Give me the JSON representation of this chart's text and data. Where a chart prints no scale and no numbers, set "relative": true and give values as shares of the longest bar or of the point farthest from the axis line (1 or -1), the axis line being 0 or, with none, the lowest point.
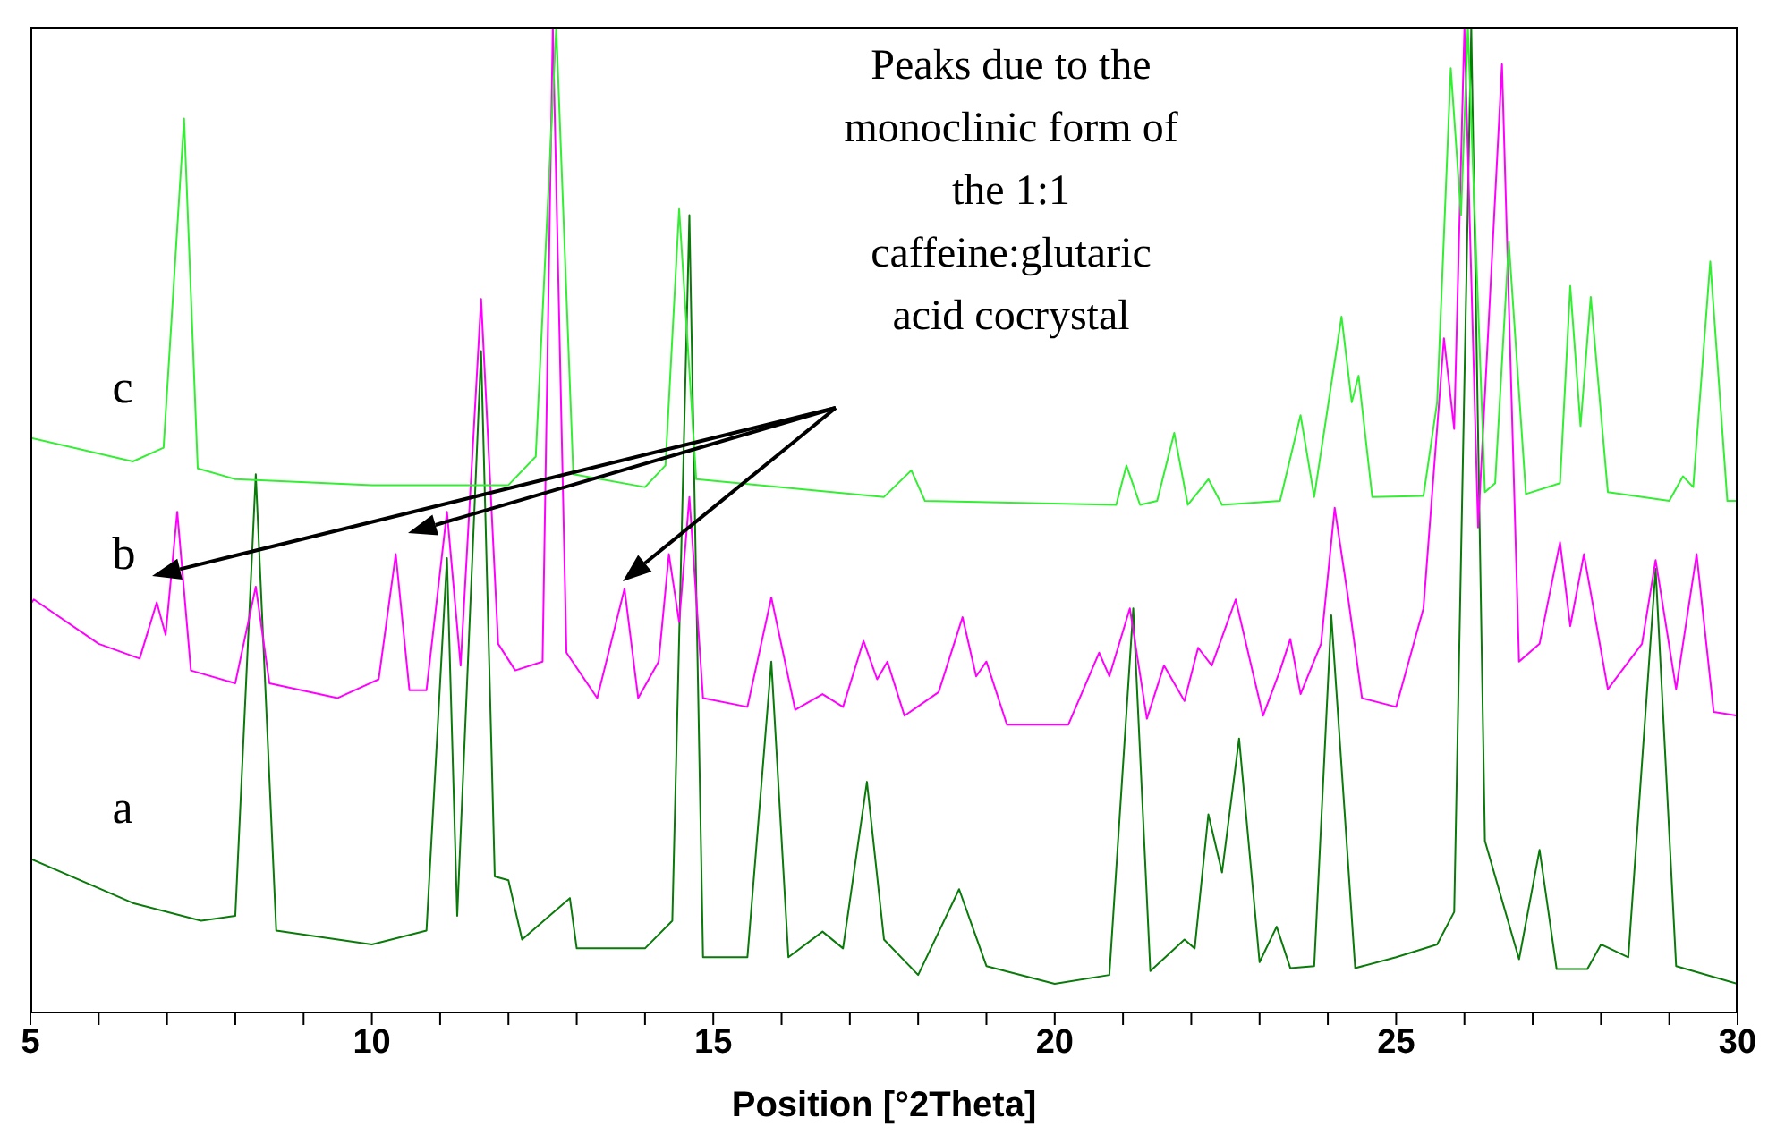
{
  "chart_data": {
    "type": "line",
    "relative": true,
    "xlabel": "Position [°2Theta]",
    "xlim": [
      5,
      30
    ],
    "xticks": [
      5,
      {
        "value": 6,
        "label": null
      },
      {
        "value": 7,
        "label": null
      },
      {
        "value": 8,
        "label": null
      },
      {
        "value": 9,
        "label": null
      },
      10,
      {
        "value": 11,
        "label": null
      },
      {
        "value": 12,
        "label": null
      },
      {
        "value": 13,
        "label": null
      },
      {
        "value": 14,
        "label": null
      },
      15,
      {
        "value": 16,
        "label": null
      },
      {
        "value": 17,
        "label": null
      },
      {
        "value": 18,
        "label": null
      },
      {
        "value": 19,
        "label": null
      },
      20,
      {
        "value": 21,
        "label": null
      },
      {
        "value": 22,
        "label": null
      },
      {
        "value": 23,
        "label": null
      },
      {
        "value": 24,
        "label": null
      },
      25,
      {
        "value": 26,
        "label": null
      },
      {
        "value": 27,
        "label": null
      },
      {
        "value": 28,
        "label": null
      },
      {
        "value": 29,
        "label": null
      },
      30
    ],
    "annotations": [
      "Peaks due to the monoclinic form of the 1:1 caffeine:glutaric acid cocrystal"
    ],
    "series": [
      {
        "name": "a",
        "color": "#0a7a0a",
        "x": [
          5,
          6.5,
          7.5,
          8.0,
          8.3,
          8.6,
          10,
          10.8,
          11.1,
          11.25,
          11.6,
          11.8,
          12.0,
          12.2,
          12.9,
          13.0,
          14.0,
          14.4,
          14.65,
          14.85,
          15.5,
          15.85,
          16.1,
          16.6,
          16.9,
          17.25,
          17.5,
          18.0,
          18.6,
          19.0,
          20.0,
          20.8,
          21.15,
          21.4,
          21.9,
          22.05,
          22.25,
          22.45,
          22.7,
          23.0,
          23.25,
          23.45,
          23.8,
          24.05,
          24.4,
          25.0,
          25.6,
          25.85,
          26.1,
          26.3,
          26.8,
          27.1,
          27.35,
          27.8,
          28.0,
          28.4,
          28.8,
          29.1,
          30
        ],
        "values": [
          0.156,
          0.111,
          0.093,
          0.098,
          0.546,
          0.083,
          0.069,
          0.083,
          0.461,
          0.098,
          0.671,
          0.138,
          0.134,
          0.074,
          0.116,
          0.065,
          0.065,
          0.093,
          0.809,
          0.056,
          0.056,
          0.356,
          0.056,
          0.082,
          0.065,
          0.234,
          0.074,
          0.038,
          0.125,
          0.047,
          0.029,
          0.038,
          0.41,
          0.042,
          0.074,
          0.065,
          0.201,
          0.142,
          0.278,
          0.051,
          0.087,
          0.045,
          0.047,
          0.403,
          0.045,
          0.056,
          0.069,
          0.102,
          1,
          0.174,
          0.054,
          0.165,
          0.044,
          0.044,
          0.069,
          0.056,
          0.45,
          0.047,
          0.029
        ]
      },
      {
        "name": "b",
        "color": "#ff00ff",
        "x": [
          5,
          5.05,
          6.0,
          6.6,
          6.85,
          6.98,
          7.15,
          7.35,
          8.0,
          8.3,
          8.5,
          9.5,
          10.1,
          10.35,
          10.55,
          10.8,
          11.1,
          11.3,
          11.6,
          11.85,
          12.1,
          12.5,
          12.65,
          12.85,
          13.3,
          13.7,
          13.9,
          14.2,
          14.35,
          14.5,
          14.65,
          14.85,
          15.5,
          15.85,
          16.2,
          16.6,
          16.9,
          17.2,
          17.4,
          17.55,
          17.8,
          18.3,
          18.65,
          18.85,
          19.0,
          19.3,
          20.2,
          20.65,
          20.8,
          21.1,
          21.35,
          21.6,
          21.9,
          22.1,
          22.3,
          22.65,
          23.05,
          23.3,
          23.45,
          23.6,
          23.9,
          24.1,
          24.3,
          24.5,
          25.0,
          25.4,
          25.7,
          25.85,
          26.0,
          26.2,
          26.55,
          26.8,
          27.1,
          27.4,
          27.55,
          27.75,
          28.1,
          28.6,
          28.8,
          29.1,
          29.4,
          29.65,
          30
        ],
        "values": [
          0.414,
          0.419,
          0.374,
          0.359,
          0.416,
          0.383,
          0.508,
          0.347,
          0.334,
          0.432,
          0.334,
          0.319,
          0.338,
          0.465,
          0.327,
          0.327,
          0.508,
          0.352,
          0.724,
          0.374,
          0.347,
          0.356,
          1,
          0.365,
          0.319,
          0.43,
          0.319,
          0.356,
          0.465,
          0.396,
          0.523,
          0.319,
          0.31,
          0.421,
          0.307,
          0.323,
          0.31,
          0.377,
          0.338,
          0.356,
          0.301,
          0.325,
          0.401,
          0.341,
          0.356,
          0.292,
          0.292,
          0.365,
          0.341,
          0.41,
          0.298,
          0.352,
          0.316,
          0.37,
          0.352,
          0.419,
          0.301,
          0.347,
          0.379,
          0.323,
          0.374,
          0.512,
          0.419,
          0.319,
          0.31,
          0.41,
          0.684,
          0.592,
          1,
          0.492,
          0.962,
          0.356,
          0.374,
          0.477,
          0.392,
          0.465,
          0.328,
          0.374,
          0.459,
          0.328,
          0.465,
          0.305,
          0.301
        ]
      },
      {
        "name": "c",
        "color": "#33ee33",
        "x": [
          5,
          6.5,
          6.95,
          7.25,
          7.45,
          8.0,
          10,
          12.0,
          12.4,
          12.7,
          12.95,
          14.0,
          14.3,
          14.5,
          14.75,
          17.5,
          17.9,
          18.1,
          20.9,
          21.05,
          21.25,
          21.5,
          21.75,
          21.95,
          22.25,
          22.45,
          23.3,
          23.6,
          23.8,
          24.2,
          24.35,
          24.45,
          24.65,
          25.4,
          25.6,
          25.8,
          25.95,
          26.05,
          26.3,
          26.45,
          26.65,
          26.9,
          27.4,
          27.55,
          27.7,
          27.85,
          28.1,
          29.0,
          29.2,
          29.35,
          29.6,
          29.85,
          30
        ],
        "values": [
          0.583,
          0.559,
          0.573,
          0.907,
          0.552,
          0.541,
          0.535,
          0.535,
          0.564,
          1,
          0.546,
          0.533,
          0.555,
          0.815,
          0.541,
          0.523,
          0.55,
          0.519,
          0.515,
          0.555,
          0.515,
          0.519,
          0.588,
          0.515,
          0.541,
          0.515,
          0.519,
          0.606,
          0.523,
          0.706,
          0.619,
          0.646,
          0.523,
          0.524,
          0.619,
          0.958,
          0.809,
          1,
          0.528,
          0.537,
          0.782,
          0.526,
          0.537,
          0.737,
          0.595,
          0.726,
          0.528,
          0.519,
          0.544,
          0.533,
          0.762,
          0.519,
          0.519
        ]
      }
    ]
  }
}
